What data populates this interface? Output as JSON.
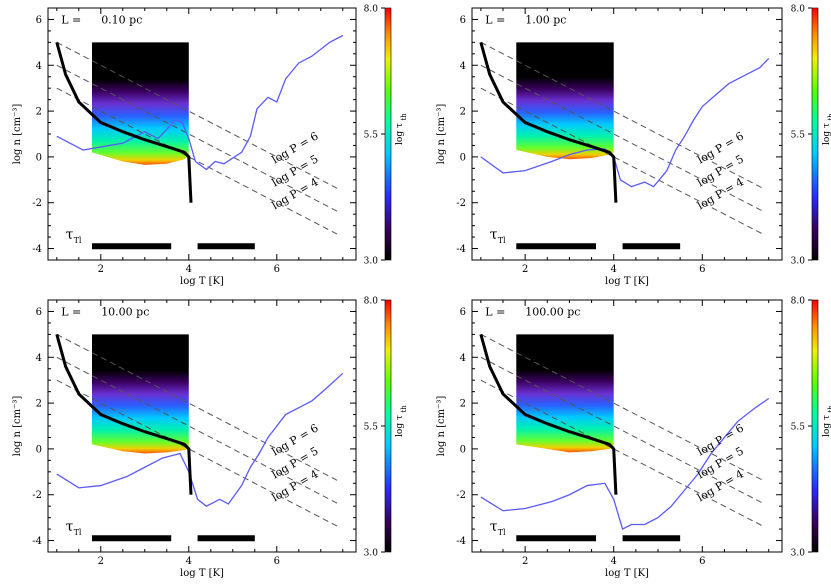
{
  "figure": {
    "ylabel": "log n [cm⁻³]",
    "xlabel": "log T [K]",
    "cbar_label": "log τ",
    "cbar_label_sub": "th",
    "tau_label": "τ",
    "tau_label_sub": "Tl",
    "isobar_prefix": "log P ="
  },
  "chart_data": [
    {
      "type": "scatter",
      "panel_label": "L =",
      "panel_value": "0.10 pc",
      "xlim": [
        0.8,
        7.8
      ],
      "ylim": [
        -4.5,
        6.5
      ],
      "xticks": [
        2,
        4,
        6
      ],
      "yticks": [
        -4,
        -2,
        0,
        2,
        4,
        6
      ],
      "colorbar": {
        "ticks": [
          "8.0",
          "5.5",
          "3.0"
        ],
        "range": [
          3.0,
          8.0
        ]
      },
      "isobars": [
        {
          "logP": "6",
          "points": [
            [
              1.0,
              5.0
            ],
            [
              7.4,
              -1.4
            ]
          ]
        },
        {
          "logP": "5",
          "points": [
            [
              1.0,
              4.0
            ],
            [
              7.4,
              -2.4
            ]
          ]
        },
        {
          "logP": "4",
          "points": [
            [
              1.0,
              3.0
            ],
            [
              7.4,
              -3.4
            ]
          ]
        }
      ],
      "equilibrium_curve": [
        [
          1.0,
          5.0
        ],
        [
          1.2,
          3.6
        ],
        [
          1.5,
          2.4
        ],
        [
          2.0,
          1.5
        ],
        [
          2.5,
          1.1
        ],
        [
          3.0,
          0.75
        ],
        [
          3.5,
          0.45
        ],
        [
          3.9,
          0.2
        ],
        [
          4.0,
          0.0
        ],
        [
          4.05,
          -2.0
        ]
      ],
      "blue_curve": [
        [
          1.0,
          0.9
        ],
        [
          1.6,
          0.3
        ],
        [
          2.5,
          0.6
        ],
        [
          3.0,
          1.1
        ],
        [
          3.3,
          0.8
        ],
        [
          3.5,
          1.2
        ],
        [
          3.7,
          1.65
        ],
        [
          3.85,
          1.5
        ],
        [
          4.0,
          0.8
        ],
        [
          4.15,
          -0.2
        ],
        [
          4.4,
          -0.55
        ],
        [
          4.6,
          -0.2
        ],
        [
          4.8,
          -0.3
        ],
        [
          5.2,
          0.2
        ],
        [
          5.4,
          0.9
        ],
        [
          5.55,
          2.1
        ],
        [
          5.8,
          2.6
        ],
        [
          6.0,
          2.4
        ],
        [
          6.2,
          3.4
        ],
        [
          6.5,
          4.1
        ],
        [
          6.8,
          4.4
        ],
        [
          7.2,
          5.0
        ],
        [
          7.5,
          5.3
        ]
      ],
      "tau_bars": [
        [
          1.8,
          3.6
        ],
        [
          4.2,
          5.5
        ]
      ],
      "tau_bar_y": -3.9,
      "heatmap_region": {
        "x_range": [
          1.8,
          4.0
        ],
        "n_top": 5.0,
        "bottom_curve": [
          [
            1.8,
            0.2
          ],
          [
            2.5,
            -0.2
          ],
          [
            3.0,
            -0.35
          ],
          [
            3.5,
            -0.3
          ],
          [
            3.9,
            -0.1
          ],
          [
            4.0,
            0.05
          ]
        ]
      }
    },
    {
      "type": "scatter",
      "panel_label": "L =",
      "panel_value": "1.00 pc",
      "xlim": [
        0.8,
        7.8
      ],
      "ylim": [
        -4.5,
        6.5
      ],
      "xticks": [
        2,
        4,
        6
      ],
      "yticks": [
        -4,
        -2,
        0,
        2,
        4,
        6
      ],
      "colorbar": {
        "ticks": [
          "8.0",
          "5.5",
          "3.0"
        ],
        "range": [
          3.0,
          8.0
        ]
      },
      "isobars": [
        {
          "logP": "6",
          "points": [
            [
              1.0,
              5.0
            ],
            [
              7.4,
              -1.4
            ]
          ]
        },
        {
          "logP": "5",
          "points": [
            [
              1.0,
              4.0
            ],
            [
              7.4,
              -2.4
            ]
          ]
        },
        {
          "logP": "4",
          "points": [
            [
              1.0,
              3.0
            ],
            [
              7.4,
              -3.4
            ]
          ]
        }
      ],
      "equilibrium_curve": [
        [
          1.0,
          5.0
        ],
        [
          1.2,
          3.6
        ],
        [
          1.5,
          2.4
        ],
        [
          2.0,
          1.5
        ],
        [
          2.5,
          1.1
        ],
        [
          3.0,
          0.75
        ],
        [
          3.5,
          0.45
        ],
        [
          3.9,
          0.2
        ],
        [
          4.0,
          0.0
        ],
        [
          4.05,
          -2.0
        ]
      ],
      "blue_curve": [
        [
          1.0,
          0.0
        ],
        [
          1.5,
          -0.7
        ],
        [
          2.0,
          -0.6
        ],
        [
          2.6,
          -0.2
        ],
        [
          3.0,
          0.1
        ],
        [
          3.4,
          0.3
        ],
        [
          3.8,
          0.35
        ],
        [
          4.0,
          0.0
        ],
        [
          4.15,
          -1.0
        ],
        [
          4.4,
          -1.3
        ],
        [
          4.7,
          -1.1
        ],
        [
          4.9,
          -1.3
        ],
        [
          5.2,
          -0.6
        ],
        [
          5.4,
          0.3
        ],
        [
          5.6,
          0.9
        ],
        [
          5.8,
          1.6
        ],
        [
          6.0,
          2.2
        ],
        [
          6.3,
          2.7
        ],
        [
          6.6,
          3.2
        ],
        [
          7.0,
          3.6
        ],
        [
          7.3,
          3.9
        ],
        [
          7.5,
          4.3
        ]
      ],
      "tau_bars": [
        [
          1.8,
          3.6
        ],
        [
          4.2,
          5.5
        ]
      ],
      "tau_bar_y": -3.9,
      "heatmap_region": {
        "x_range": [
          1.8,
          4.0
        ],
        "n_top": 5.0,
        "bottom_curve": [
          [
            1.8,
            0.3
          ],
          [
            2.5,
            0.0
          ],
          [
            3.0,
            -0.1
          ],
          [
            3.5,
            -0.05
          ],
          [
            3.9,
            0.1
          ],
          [
            4.0,
            0.2
          ]
        ]
      }
    },
    {
      "type": "scatter",
      "panel_label": "L =",
      "panel_value": "10.00 pc",
      "xlim": [
        0.8,
        7.8
      ],
      "ylim": [
        -4.5,
        6.5
      ],
      "xticks": [
        2,
        4,
        6
      ],
      "yticks": [
        -4,
        -2,
        0,
        2,
        4,
        6
      ],
      "colorbar": {
        "ticks": [
          "8.0",
          "5.5",
          "3.0"
        ],
        "range": [
          3.0,
          8.0
        ]
      },
      "isobars": [
        {
          "logP": "6",
          "points": [
            [
              1.0,
              5.0
            ],
            [
              7.4,
              -1.4
            ]
          ]
        },
        {
          "logP": "5",
          "points": [
            [
              1.0,
              4.0
            ],
            [
              7.4,
              -2.4
            ]
          ]
        },
        {
          "logP": "4",
          "points": [
            [
              1.0,
              3.0
            ],
            [
              7.4,
              -3.4
            ]
          ]
        }
      ],
      "equilibrium_curve": [
        [
          1.0,
          5.0
        ],
        [
          1.2,
          3.6
        ],
        [
          1.5,
          2.4
        ],
        [
          2.0,
          1.5
        ],
        [
          2.5,
          1.1
        ],
        [
          3.0,
          0.75
        ],
        [
          3.5,
          0.45
        ],
        [
          3.9,
          0.2
        ],
        [
          4.0,
          0.0
        ],
        [
          4.05,
          -2.0
        ]
      ],
      "blue_curve": [
        [
          1.0,
          -1.1
        ],
        [
          1.5,
          -1.7
        ],
        [
          2.0,
          -1.6
        ],
        [
          2.6,
          -1.2
        ],
        [
          3.0,
          -0.8
        ],
        [
          3.4,
          -0.4
        ],
        [
          3.8,
          -0.2
        ],
        [
          4.0,
          -1.0
        ],
        [
          4.2,
          -2.2
        ],
        [
          4.4,
          -2.5
        ],
        [
          4.7,
          -2.2
        ],
        [
          4.9,
          -2.4
        ],
        [
          5.2,
          -1.6
        ],
        [
          5.4,
          -0.8
        ],
        [
          5.6,
          -0.2
        ],
        [
          5.8,
          0.5
        ],
        [
          6.0,
          1.0
        ],
        [
          6.2,
          1.5
        ],
        [
          6.5,
          1.8
        ],
        [
          6.8,
          2.1
        ],
        [
          7.1,
          2.6
        ],
        [
          7.5,
          3.3
        ]
      ],
      "tau_bars": [
        [
          1.8,
          3.6
        ],
        [
          4.2,
          5.5
        ]
      ],
      "tau_bar_y": -3.9,
      "heatmap_region": {
        "x_range": [
          1.8,
          4.0
        ],
        "n_top": 5.0,
        "bottom_curve": [
          [
            1.8,
            0.2
          ],
          [
            2.5,
            -0.1
          ],
          [
            3.0,
            -0.2
          ],
          [
            3.5,
            -0.15
          ],
          [
            3.9,
            -0.05
          ],
          [
            4.0,
            0.0
          ]
        ]
      }
    },
    {
      "type": "scatter",
      "panel_label": "L =",
      "panel_value": "100.00 pc",
      "xlim": [
        0.8,
        7.8
      ],
      "ylim": [
        -4.5,
        6.5
      ],
      "xticks": [
        2,
        4,
        6
      ],
      "yticks": [
        -4,
        -2,
        0,
        2,
        4,
        6
      ],
      "colorbar": {
        "ticks": [
          "8.0",
          "5.5",
          "3.0"
        ],
        "range": [
          3.0,
          8.0
        ]
      },
      "isobars": [
        {
          "logP": "6",
          "points": [
            [
              1.0,
              5.0
            ],
            [
              7.4,
              -1.4
            ]
          ]
        },
        {
          "logP": "5",
          "points": [
            [
              1.0,
              4.0
            ],
            [
              7.4,
              -2.4
            ]
          ]
        },
        {
          "logP": "4",
          "points": [
            [
              1.0,
              3.0
            ],
            [
              7.4,
              -3.4
            ]
          ]
        }
      ],
      "equilibrium_curve": [
        [
          1.0,
          5.0
        ],
        [
          1.2,
          3.6
        ],
        [
          1.5,
          2.4
        ],
        [
          2.0,
          1.5
        ],
        [
          2.5,
          1.1
        ],
        [
          3.0,
          0.75
        ],
        [
          3.5,
          0.45
        ],
        [
          3.9,
          0.2
        ],
        [
          4.0,
          0.0
        ],
        [
          4.05,
          -2.0
        ]
      ],
      "blue_curve": [
        [
          1.0,
          -2.1
        ],
        [
          1.5,
          -2.7
        ],
        [
          2.0,
          -2.6
        ],
        [
          2.6,
          -2.3
        ],
        [
          3.0,
          -2.0
        ],
        [
          3.4,
          -1.6
        ],
        [
          3.8,
          -1.5
        ],
        [
          4.0,
          -2.2
        ],
        [
          4.2,
          -3.5
        ],
        [
          4.4,
          -3.3
        ],
        [
          4.7,
          -3.3
        ],
        [
          5.0,
          -3.0
        ],
        [
          5.3,
          -2.5
        ],
        [
          5.6,
          -1.8
        ],
        [
          5.9,
          -1.1
        ],
        [
          6.2,
          -0.2
        ],
        [
          6.5,
          0.5
        ],
        [
          6.8,
          1.2
        ],
        [
          7.2,
          1.8
        ],
        [
          7.5,
          2.2
        ]
      ],
      "tau_bars": [
        [
          1.8,
          3.6
        ],
        [
          4.2,
          5.5
        ]
      ],
      "tau_bar_y": -3.9,
      "heatmap_region": {
        "x_range": [
          1.8,
          4.0
        ],
        "n_top": 5.0,
        "bottom_curve": [
          [
            1.8,
            0.2
          ],
          [
            2.5,
            0.0
          ],
          [
            3.0,
            -0.15
          ],
          [
            3.5,
            -0.1
          ],
          [
            3.9,
            0.0
          ],
          [
            4.0,
            0.1
          ]
        ]
      }
    }
  ]
}
